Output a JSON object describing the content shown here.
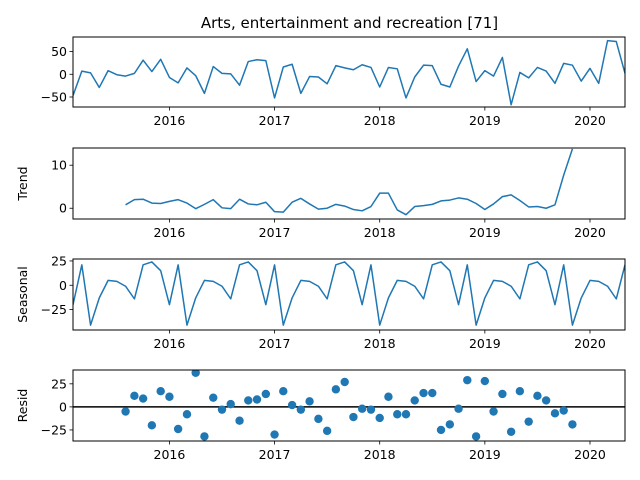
{
  "chart_data": {
    "type": "line",
    "title": "Arts, entertainment and recreation  [71]",
    "x_tick_labels": [
      "2016",
      "2017",
      "2018",
      "2019",
      "2020"
    ],
    "x_tick_values": [
      2016,
      2017,
      2018,
      2019,
      2020
    ],
    "xlim": [
      2015.083,
      2020.333
    ],
    "line_color": "#1f77b4",
    "panels": [
      {
        "name": "observed",
        "type": "line",
        "ylabel": "",
        "ylim": [
          -72,
          82
        ],
        "yticks": [
          50,
          0,
          -50
        ],
        "x": [
          2015.083,
          2015.167,
          2015.25,
          2015.333,
          2015.417,
          2015.5,
          2015.583,
          2015.667,
          2015.75,
          2015.833,
          2015.917,
          2016.0,
          2016.083,
          2016.167,
          2016.25,
          2016.333,
          2016.417,
          2016.5,
          2016.583,
          2016.667,
          2016.75,
          2016.833,
          2016.917,
          2017.0,
          2017.083,
          2017.167,
          2017.25,
          2017.333,
          2017.417,
          2017.5,
          2017.583,
          2017.667,
          2017.75,
          2017.833,
          2017.917,
          2018.0,
          2018.083,
          2018.167,
          2018.25,
          2018.333,
          2018.417,
          2018.5,
          2018.583,
          2018.667,
          2018.75,
          2018.833,
          2018.917,
          2019.0,
          2019.083,
          2019.167,
          2019.25,
          2019.333,
          2019.417,
          2019.5,
          2019.583,
          2019.667,
          2019.75,
          2019.833,
          2019.917,
          2020.0,
          2020.083,
          2020.167,
          2020.25,
          2020.333
        ],
        "values": [
          -47,
          7,
          3,
          -29,
          8,
          -1,
          -4,
          2,
          31,
          6,
          33,
          -7,
          -19,
          14,
          -3,
          -42,
          17,
          2,
          1,
          -24,
          28,
          32,
          30,
          -52,
          16,
          22,
          -42,
          -5,
          -6,
          -21,
          19,
          14,
          10,
          21,
          15,
          -28,
          15,
          12,
          -52,
          -6,
          20,
          19,
          -22,
          -28,
          18,
          56,
          -16,
          8,
          -4,
          37,
          -67,
          4,
          -8,
          15,
          7,
          -20,
          24,
          20,
          -15,
          13,
          -20,
          74,
          72,
          2
        ]
      },
      {
        "name": "trend",
        "type": "line",
        "ylabel": "Trend",
        "ylim": [
          -2.5,
          14
        ],
        "yticks": [
          10,
          0
        ],
        "x": [
          2015.583,
          2015.667,
          2015.75,
          2015.833,
          2015.917,
          2016.0,
          2016.083,
          2016.167,
          2016.25,
          2016.333,
          2016.417,
          2016.5,
          2016.583,
          2016.667,
          2016.75,
          2016.833,
          2016.917,
          2017.0,
          2017.083,
          2017.167,
          2017.25,
          2017.333,
          2017.417,
          2017.5,
          2017.583,
          2017.667,
          2017.75,
          2017.833,
          2017.917,
          2018.0,
          2018.083,
          2018.167,
          2018.25,
          2018.333,
          2018.417,
          2018.5,
          2018.583,
          2018.667,
          2018.75,
          2018.833,
          2018.917,
          2019.0,
          2019.083,
          2019.167,
          2019.25,
          2019.333,
          2019.417,
          2019.5,
          2019.583,
          2019.667,
          2019.75,
          2019.833
        ],
        "values": [
          0.8,
          2.0,
          2.1,
          1.2,
          1.1,
          1.6,
          2.0,
          1.2,
          -0.1,
          0.9,
          2.0,
          0.1,
          -0.1,
          2.1,
          1.0,
          0.8,
          1.4,
          -0.8,
          -0.9,
          1.4,
          2.3,
          1.0,
          -0.2,
          0.0,
          0.9,
          0.5,
          -0.3,
          -0.6,
          0.4,
          3.5,
          3.5,
          -0.4,
          -1.5,
          0.4,
          0.6,
          0.9,
          1.7,
          1.9,
          2.4,
          2.1,
          1.1,
          -0.3,
          1.0,
          2.7,
          3.1,
          1.8,
          0.3,
          0.4,
          0.0,
          0.8,
          7.7,
          13.8
        ]
      },
      {
        "name": "seasonal",
        "type": "line",
        "ylabel": "Seasonal",
        "ylim": [
          -46,
          27
        ],
        "yticks": [
          25,
          0,
          -25
        ],
        "x": [
          2015.083,
          2015.167,
          2015.25,
          2015.333,
          2015.417,
          2015.5,
          2015.583,
          2015.667,
          2015.75,
          2015.833,
          2015.917,
          2016.0,
          2016.083,
          2016.167,
          2016.25,
          2016.333,
          2016.417,
          2016.5,
          2016.583,
          2016.667,
          2016.75,
          2016.833,
          2016.917,
          2017.0,
          2017.083,
          2017.167,
          2017.25,
          2017.333,
          2017.417,
          2017.5,
          2017.583,
          2017.667,
          2017.75,
          2017.833,
          2017.917,
          2018.0,
          2018.083,
          2018.167,
          2018.25,
          2018.333,
          2018.417,
          2018.5,
          2018.583,
          2018.667,
          2018.75,
          2018.833,
          2018.917,
          2019.0,
          2019.083,
          2019.167,
          2019.25,
          2019.333,
          2019.417,
          2019.5,
          2019.583,
          2019.667,
          2019.75,
          2019.833,
          2019.917,
          2020.0,
          2020.083,
          2020.167,
          2020.25,
          2020.333
        ],
        "values": [
          -20,
          21,
          -41,
          -13,
          5,
          4,
          -1,
          -14,
          21,
          24,
          15,
          -20,
          21,
          -41,
          -13,
          5,
          4,
          -1,
          -14,
          21,
          24,
          15,
          -20,
          21,
          -41,
          -13,
          5,
          4,
          -1,
          -14,
          21,
          24,
          15,
          -20,
          21,
          -41,
          -13,
          5,
          4,
          -1,
          -14,
          21,
          24,
          15,
          -20,
          21,
          -41,
          -13,
          5,
          4,
          -1,
          -14,
          21,
          24,
          15,
          -20,
          21,
          -41,
          -13,
          5,
          4,
          -1,
          -14,
          21
        ]
      },
      {
        "name": "resid",
        "type": "scatter",
        "ylabel": "Resid",
        "ylim": [
          -37,
          40
        ],
        "yticks": [
          25,
          0,
          -25
        ],
        "baseline": 0,
        "x": [
          2015.583,
          2015.667,
          2015.75,
          2015.833,
          2015.917,
          2016.0,
          2016.083,
          2016.167,
          2016.25,
          2016.333,
          2016.417,
          2016.5,
          2016.583,
          2016.667,
          2016.75,
          2016.833,
          2016.917,
          2017.0,
          2017.083,
          2017.167,
          2017.25,
          2017.333,
          2017.417,
          2017.5,
          2017.583,
          2017.667,
          2017.75,
          2017.833,
          2017.917,
          2018.0,
          2018.083,
          2018.167,
          2018.25,
          2018.333,
          2018.417,
          2018.5,
          2018.583,
          2018.667,
          2018.75,
          2018.833,
          2018.917,
          2019.0,
          2019.083,
          2019.167,
          2019.25,
          2019.333,
          2019.417,
          2019.5,
          2019.583,
          2019.667,
          2019.75,
          2019.833
        ],
        "values": [
          -5,
          12,
          9,
          -20,
          17,
          11,
          -24,
          -8,
          37,
          -32,
          10,
          -3,
          3,
          -15,
          7,
          8,
          14,
          -30,
          17,
          2,
          -3,
          6,
          -13,
          -26,
          19,
          27,
          -11,
          -2,
          -3,
          -12,
          11,
          -8,
          -8,
          7,
          15,
          15,
          -25,
          -19,
          -2,
          29,
          -32,
          28,
          -5,
          14,
          -27,
          17,
          -16,
          12,
          7,
          -7,
          -4,
          -19
        ]
      }
    ]
  }
}
